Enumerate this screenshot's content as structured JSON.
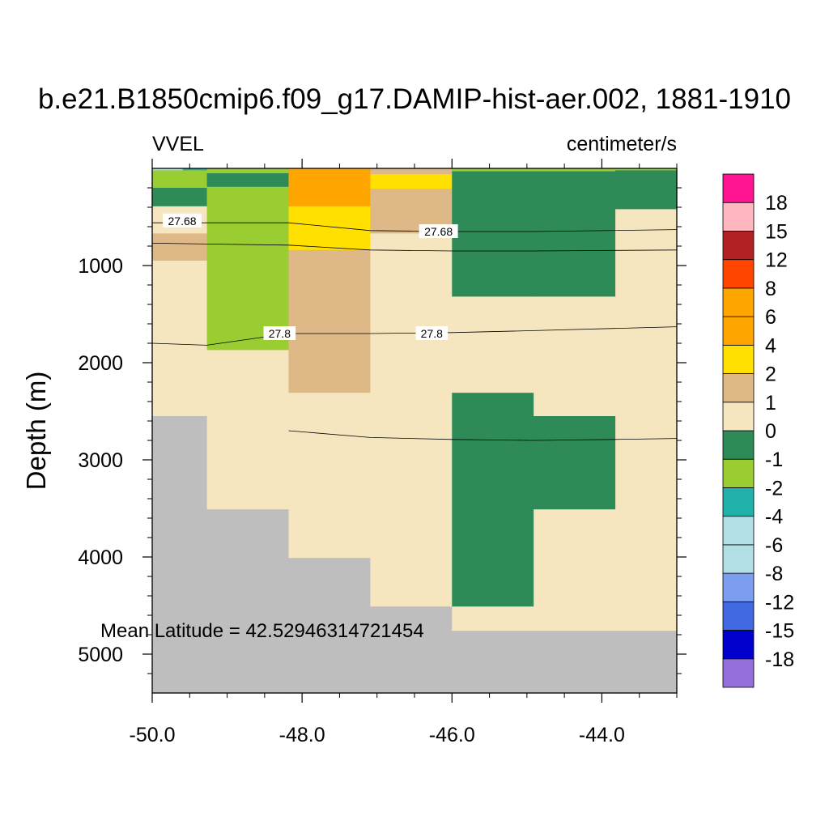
{
  "chart_data": {
    "type": "heatmap",
    "title": "b.e21.B1850cmip6.f09_g17.DAMIP-hist-aer.002, 1881-1910",
    "left_label": "VVEL",
    "right_label": "centimeter/s",
    "ylabel": "Depth (m)",
    "xlabel": "",
    "annotation": "Mean Latitude = 42.52946314721454",
    "xlim": [
      -50.0,
      -43.0
    ],
    "ylim": [
      0,
      5400
    ],
    "y_inverted": true,
    "x_ticks": [
      {
        "value": -50.0,
        "label": "-50.0"
      },
      {
        "value": -48.0,
        "label": "-48.0"
      },
      {
        "value": -46.0,
        "label": "-46.0"
      },
      {
        "value": -44.0,
        "label": "-44.0"
      }
    ],
    "y_ticks": [
      {
        "value": 1000,
        "label": "1000"
      },
      {
        "value": 2000,
        "label": "2000"
      },
      {
        "value": 3000,
        "label": "3000"
      },
      {
        "value": 4000,
        "label": "4000"
      },
      {
        "value": 5000,
        "label": "5000"
      }
    ],
    "colorbar": {
      "colors": [
        "#9370DB",
        "#0000CD",
        "#4169E1",
        "#7B9EF0",
        "#B0E0E6",
        "#B0E0E6",
        "#20B2AA",
        "#9ACD32",
        "#2E8B57",
        "#F5E6C0",
        "#DEB887",
        "#FFE000",
        "#FFA500",
        "#FFA500",
        "#FF4500",
        "#B22222",
        "#FFB6C1",
        "#FF1493"
      ],
      "labels": [
        "-18",
        "-15",
        "-12",
        "-8",
        "-6",
        "-4",
        "-2",
        "-1",
        "0",
        "1",
        "2",
        "4",
        "6",
        "8",
        "12",
        "15",
        "18"
      ]
    },
    "land_color": "#BEBEBE",
    "cells": [
      {
        "x0": -50.0,
        "x1": -49.27,
        "y0": 0,
        "y1": 20,
        "v": -3.0
      },
      {
        "x0": -50.0,
        "x1": -49.27,
        "y0": 20,
        "y1": 200,
        "v": -1.5
      },
      {
        "x0": -50.0,
        "x1": -49.27,
        "y0": 200,
        "y1": 390,
        "v": -0.5
      },
      {
        "x0": -50.0,
        "x1": -49.27,
        "y0": 390,
        "y1": 670,
        "v": 0.5
      },
      {
        "x0": -50.0,
        "x1": -49.27,
        "y0": 670,
        "y1": 950,
        "v": 1.5
      },
      {
        "x0": -50.0,
        "x1": -49.27,
        "y0": 950,
        "y1": 2550,
        "v": 0.5
      },
      {
        "x0": -50.0,
        "x1": -49.27,
        "y0": 2550,
        "y1": 5400,
        "land": true
      },
      {
        "x0": -49.27,
        "x1": -48.18,
        "y0": 0,
        "y1": 50,
        "v": -1.5
      },
      {
        "x0": -49.27,
        "x1": -48.18,
        "y0": 50,
        "y1": 190,
        "v": -0.5
      },
      {
        "x0": -49.27,
        "x1": -48.18,
        "y0": 190,
        "y1": 1870,
        "v": -1.5
      },
      {
        "x0": -49.27,
        "x1": -48.18,
        "y0": 1870,
        "y1": 3510,
        "v": 0.5
      },
      {
        "x0": -49.27,
        "x1": -48.18,
        "y0": 3510,
        "y1": 5400,
        "land": true
      },
      {
        "x0": -48.18,
        "x1": -47.09,
        "y0": 0,
        "y1": 390,
        "v": 5.0
      },
      {
        "x0": -48.18,
        "x1": -47.09,
        "y0": 390,
        "y1": 840,
        "v": 3.0
      },
      {
        "x0": -48.18,
        "x1": -47.09,
        "y0": 840,
        "y1": 2310,
        "v": 1.5
      },
      {
        "x0": -48.18,
        "x1": -47.09,
        "y0": 2310,
        "y1": 4010,
        "v": 0.5
      },
      {
        "x0": -48.18,
        "x1": -47.09,
        "y0": 4010,
        "y1": 5400,
        "land": true
      },
      {
        "x0": -47.09,
        "x1": -46.0,
        "y0": 0,
        "y1": 60,
        "v": 1.5
      },
      {
        "x0": -47.09,
        "x1": -46.0,
        "y0": 60,
        "y1": 210,
        "v": 3.0
      },
      {
        "x0": -47.09,
        "x1": -46.0,
        "y0": 210,
        "y1": 670,
        "v": 1.5
      },
      {
        "x0": -47.09,
        "x1": -46.0,
        "y0": 670,
        "y1": 4510,
        "v": 0.5
      },
      {
        "x0": -47.09,
        "x1": -46.0,
        "y0": 4510,
        "y1": 5400,
        "land": true
      },
      {
        "x0": -46.0,
        "x1": -44.91,
        "y0": 0,
        "y1": 30,
        "v": -1.5
      },
      {
        "x0": -46.0,
        "x1": -44.91,
        "y0": 30,
        "y1": 1320,
        "v": -0.5
      },
      {
        "x0": -46.0,
        "x1": -44.91,
        "y0": 1320,
        "y1": 2310,
        "v": 0.5
      },
      {
        "x0": -46.0,
        "x1": -44.91,
        "y0": 2310,
        "y1": 4510,
        "v": -0.5
      },
      {
        "x0": -46.0,
        "x1": -44.91,
        "y0": 4510,
        "y1": 4760,
        "v": 0.5
      },
      {
        "x0": -46.0,
        "x1": -44.91,
        "y0": 4760,
        "y1": 5400,
        "land": true
      },
      {
        "x0": -44.91,
        "x1": -43.82,
        "y0": 0,
        "y1": 30,
        "v": -1.5
      },
      {
        "x0": -44.91,
        "x1": -43.82,
        "y0": 30,
        "y1": 1320,
        "v": -0.5
      },
      {
        "x0": -44.91,
        "x1": -43.82,
        "y0": 1320,
        "y1": 2550,
        "v": 0.5
      },
      {
        "x0": -44.91,
        "x1": -43.82,
        "y0": 2550,
        "y1": 3510,
        "v": -0.5
      },
      {
        "x0": -44.91,
        "x1": -43.82,
        "y0": 3510,
        "y1": 4760,
        "v": 0.5
      },
      {
        "x0": -44.91,
        "x1": -43.82,
        "y0": 4760,
        "y1": 5400,
        "land": true
      },
      {
        "x0": -43.82,
        "x1": -43.0,
        "y0": 0,
        "y1": 20,
        "v": -1.5
      },
      {
        "x0": -43.82,
        "x1": -43.0,
        "y0": 20,
        "y1": 420,
        "v": -0.5
      },
      {
        "x0": -43.82,
        "x1": -43.0,
        "y0": 420,
        "y1": 4760,
        "v": 0.5
      },
      {
        "x0": -43.82,
        "x1": -43.0,
        "y0": 4760,
        "y1": 5400,
        "land": true
      },
      {
        "x0": -50.0,
        "x1": -49.6,
        "y0": 0,
        "y1": 15,
        "v": -4.5
      }
    ],
    "contours": [
      {
        "level": "27.68",
        "points": [
          [
            -50.0,
            560
          ],
          [
            -48.18,
            560
          ],
          [
            -47.09,
            640
          ],
          [
            -46.0,
            650
          ],
          [
            -44.91,
            650
          ],
          [
            -43.0,
            630
          ]
        ],
        "labels": [
          {
            "x": -49.6,
            "y": 540
          },
          {
            "x": -46.18,
            "y": 650
          }
        ]
      },
      {
        "level": "",
        "points": [
          [
            -50.0,
            770
          ],
          [
            -48.18,
            790
          ],
          [
            -47.09,
            840
          ],
          [
            -46.0,
            850
          ],
          [
            -44.91,
            850
          ],
          [
            -43.0,
            840
          ]
        ],
        "labels": []
      },
      {
        "level": "27.8",
        "points": [
          [
            -50.0,
            1800
          ],
          [
            -49.27,
            1820
          ],
          [
            -48.18,
            1700
          ],
          [
            -47.09,
            1700
          ],
          [
            -46.0,
            1690
          ],
          [
            -44.91,
            1670
          ],
          [
            -43.0,
            1630
          ]
        ],
        "labels": [
          {
            "x": -48.3,
            "y": 1700
          },
          {
            "x": -46.27,
            "y": 1700
          }
        ]
      },
      {
        "level": "",
        "points": [
          [
            -48.18,
            2700
          ],
          [
            -47.09,
            2770
          ],
          [
            -46.0,
            2790
          ],
          [
            -44.91,
            2800
          ],
          [
            -43.82,
            2790
          ],
          [
            -43.0,
            2780
          ]
        ],
        "labels": []
      }
    ]
  }
}
